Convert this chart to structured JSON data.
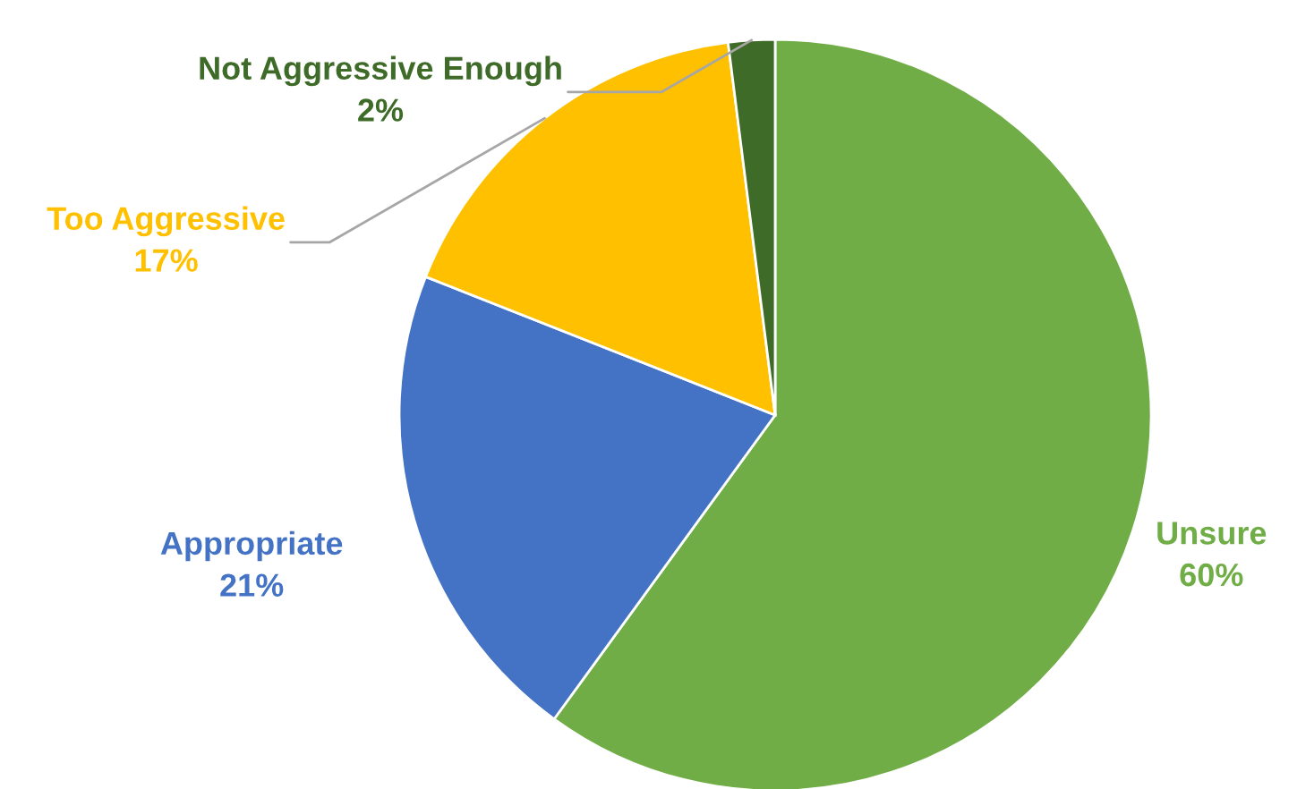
{
  "chart_data": {
    "type": "pie",
    "categories": [
      "Unsure",
      "Appropriate",
      "Too Aggressive",
      "Not Aggressive Enough"
    ],
    "values": [
      60,
      21,
      17,
      2
    ],
    "value_labels": [
      "60%",
      "21%",
      "17%",
      "2%"
    ],
    "colors": [
      "#70ad47",
      "#4472c4",
      "#ffc000",
      "#3e6b28"
    ],
    "legend": false
  }
}
